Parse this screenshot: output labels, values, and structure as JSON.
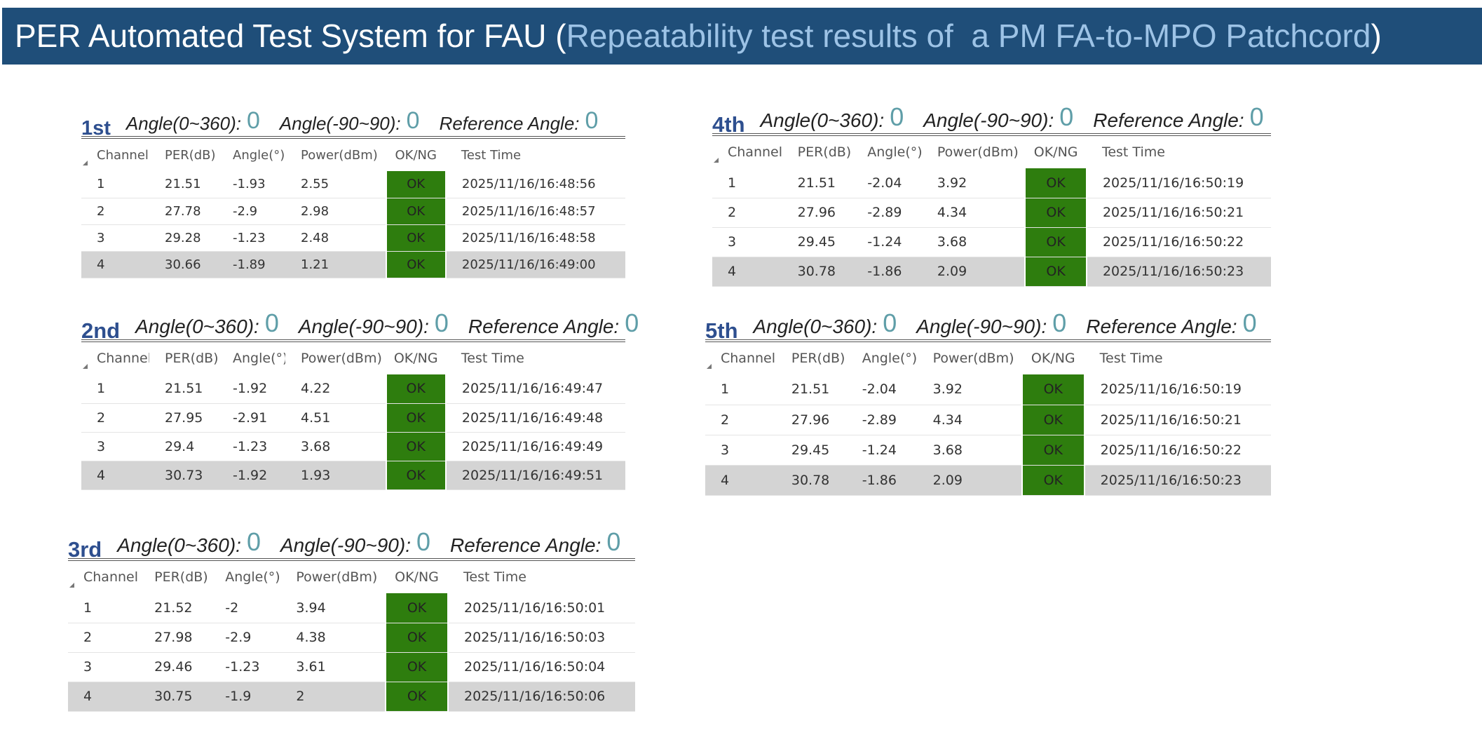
{
  "header": {
    "title_prefix": "PER Automated Test System for FAU (",
    "title_highlight": "Repeatability test results of  a PM FA-to-MPO Patchcord",
    "title_suffix": ")"
  },
  "labels": {
    "angle_0_360": "Angle(0~360):",
    "angle_90": "Angle(-90~90):",
    "reference": "Reference Angle:"
  },
  "columns": [
    "Channel",
    "PER(dB)",
    "Angle(°)",
    "Power(dBm)",
    "OK/NG",
    "Test Time"
  ],
  "panels": [
    {
      "label": "1st",
      "angle_0_360": "0",
      "angle_90": "0",
      "reference": "0",
      "rows": [
        [
          1,
          21.51,
          -1.93,
          2.55,
          "OK",
          "2025/11/16/16:48:56"
        ],
        [
          2,
          27.78,
          -2.9,
          2.98,
          "OK",
          "2025/11/16/16:48:57"
        ],
        [
          3,
          29.28,
          -1.23,
          2.48,
          "OK",
          "2025/11/16/16:48:58"
        ],
        [
          4,
          30.66,
          -1.89,
          1.21,
          "OK",
          "2025/11/16/16:49:00"
        ]
      ]
    },
    {
      "label": "2nd",
      "angle_0_360": "0",
      "angle_90": "0",
      "reference": "0",
      "rows": [
        [
          1,
          21.51,
          -1.92,
          4.22,
          "OK",
          "2025/11/16/16:49:47"
        ],
        [
          2,
          27.95,
          -2.91,
          4.51,
          "OK",
          "2025/11/16/16:49:48"
        ],
        [
          3,
          29.4,
          -1.23,
          3.68,
          "OK",
          "2025/11/16/16:49:49"
        ],
        [
          4,
          30.73,
          -1.92,
          1.93,
          "OK",
          "2025/11/16/16:49:51"
        ]
      ]
    },
    {
      "label": "3rd",
      "angle_0_360": "0",
      "angle_90": "0",
      "reference": "0",
      "rows": [
        [
          1,
          21.52,
          -2,
          3.94,
          "OK",
          "2025/11/16/16:50:01"
        ],
        [
          2,
          27.98,
          -2.9,
          4.38,
          "OK",
          "2025/11/16/16:50:03"
        ],
        [
          3,
          29.46,
          -1.23,
          3.61,
          "OK",
          "2025/11/16/16:50:04"
        ],
        [
          4,
          30.75,
          -1.9,
          2,
          "OK",
          "2025/11/16/16:50:06"
        ]
      ]
    },
    {
      "label": "4th",
      "angle_0_360": "0",
      "angle_90": "0",
      "reference": "0",
      "rows": [
        [
          1,
          21.51,
          -2.04,
          3.92,
          "OK",
          "2025/11/16/16:50:19"
        ],
        [
          2,
          27.96,
          -2.89,
          4.34,
          "OK",
          "2025/11/16/16:50:21"
        ],
        [
          3,
          29.45,
          -1.24,
          3.68,
          "OK",
          "2025/11/16/16:50:22"
        ],
        [
          4,
          30.78,
          -1.86,
          2.09,
          "OK",
          "2025/11/16/16:50:23"
        ]
      ]
    },
    {
      "label": "5th",
      "angle_0_360": "0",
      "angle_90": "0",
      "reference": "0",
      "rows": [
        [
          1,
          21.51,
          -2.04,
          3.92,
          "OK",
          "2025/11/16/16:50:19"
        ],
        [
          2,
          27.96,
          -2.89,
          4.34,
          "OK",
          "2025/11/16/16:50:21"
        ],
        [
          3,
          29.45,
          -1.24,
          3.68,
          "OK",
          "2025/11/16/16:50:22"
        ],
        [
          4,
          30.78,
          -1.86,
          2.09,
          "OK",
          "2025/11/16/16:50:23"
        ]
      ]
    }
  ]
}
